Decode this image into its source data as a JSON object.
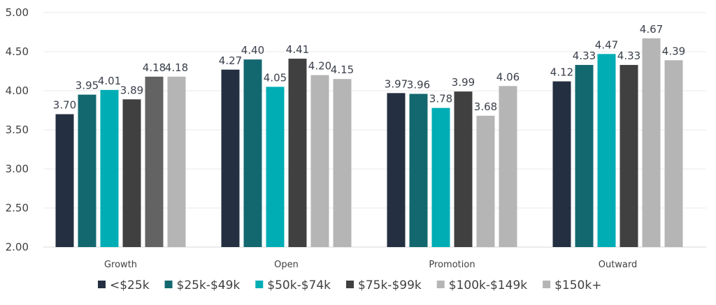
{
  "chart_data": {
    "type": "bar",
    "categories": [
      "Growth",
      "Open",
      "Promotion",
      "Outward"
    ],
    "ylim": [
      2.0,
      5.0
    ],
    "yticks": [
      "2.00",
      "2.50",
      "3.00",
      "3.50",
      "4.00",
      "4.50",
      "5.00"
    ],
    "grid": true,
    "legend_position": "bottom",
    "series": [
      {
        "name": "<$25k",
        "color": "#243041",
        "values": [
          3.7,
          4.27,
          3.97,
          4.12
        ]
      },
      {
        "name": "$25k-$49k",
        "color": "#13686f",
        "values": [
          3.95,
          4.4,
          3.96,
          4.33
        ]
      },
      {
        "name": "$50k-$74k",
        "color": "#00adb5",
        "values": [
          4.01,
          4.05,
          3.78,
          4.47
        ]
      },
      {
        "name": "$75k-$99k",
        "color": "#404040",
        "values": [
          3.89,
          4.41,
          3.99,
          4.33
        ]
      },
      {
        "name": "$100k-$149k",
        "color": "#b5b5b5",
        "point_colors": [
          "#636363",
          null,
          null,
          null
        ],
        "values": [
          4.18,
          4.2,
          3.68,
          4.67
        ]
      },
      {
        "name": "$150k+",
        "color": "#b5b5b5",
        "values": [
          4.18,
          4.15,
          4.06,
          4.39
        ]
      }
    ]
  }
}
